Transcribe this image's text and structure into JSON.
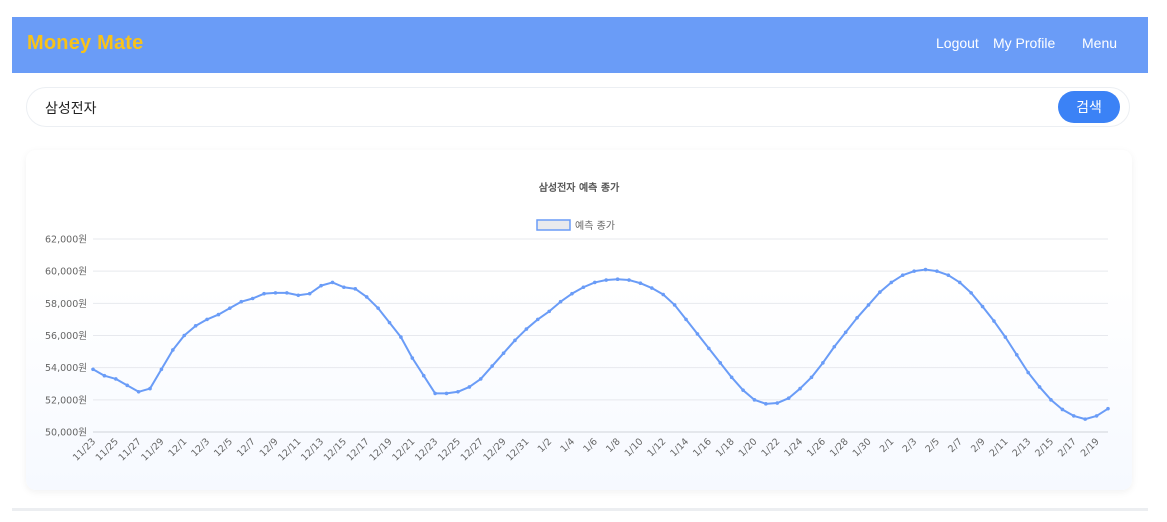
{
  "header": {
    "brand": "Money Mate",
    "links": [
      "Logout",
      "My Profile",
      "Menu"
    ]
  },
  "search": {
    "value": "삼성전자",
    "button_label": "검색"
  },
  "colors": {
    "navbar": "#6a9cf7",
    "brand": "#f8c21a",
    "button": "#3b82f6",
    "line": "#6a9cf7"
  },
  "chart_data": {
    "type": "line",
    "title": "삼성전자 예측 종가",
    "legend": "예측 종가",
    "legend_position": "top",
    "grid": true,
    "ylim": [
      50000,
      62000
    ],
    "yticks": [
      "50,000원",
      "52,000원",
      "54,000원",
      "56,000원",
      "58,000원",
      "60,000원",
      "62,000원"
    ],
    "x_tick_labels": [
      "11/23",
      "11/25",
      "11/27",
      "11/29",
      "12/1",
      "12/3",
      "12/5",
      "12/7",
      "12/9",
      "12/11",
      "12/13",
      "12/15",
      "12/17",
      "12/19",
      "12/21",
      "12/23",
      "12/25",
      "12/27",
      "12/29",
      "12/31",
      "1/2",
      "1/4",
      "1/6",
      "1/8",
      "1/10",
      "1/12",
      "1/14",
      "1/16",
      "1/18",
      "1/20",
      "1/22",
      "1/24",
      "1/26",
      "1/28",
      "1/30",
      "2/1",
      "2/3",
      "2/5",
      "2/7",
      "2/9",
      "2/11",
      "2/13",
      "2/15",
      "2/17",
      "2/19"
    ],
    "series": [
      {
        "name": "예측 종가",
        "values": [
          53900,
          53500,
          53300,
          52900,
          52500,
          52700,
          53900,
          55100,
          56000,
          56600,
          57000,
          57300,
          57700,
          58100,
          58300,
          58600,
          58650,
          58650,
          58500,
          58600,
          59100,
          59300,
          59000,
          58900,
          58400,
          57700,
          56800,
          55900,
          54600,
          53500,
          52400,
          52400,
          52500,
          52800,
          53300,
          54100,
          54900,
          55700,
          56400,
          57000,
          57500,
          58100,
          58600,
          59000,
          59300,
          59450,
          59500,
          59450,
          59250,
          58950,
          58550,
          57900,
          57000,
          56100,
          55200,
          54300,
          53400,
          52600,
          52000,
          51750,
          51800,
          52100,
          52700,
          53400,
          54300,
          55300,
          56200,
          57100,
          57900,
          58700,
          59300,
          59750,
          60000,
          60100,
          60000,
          59750,
          59300,
          58650,
          57800,
          56900,
          55900,
          54800,
          53700,
          52800,
          52000,
          51400,
          51000,
          50800,
          51000,
          51450
        ]
      }
    ]
  }
}
